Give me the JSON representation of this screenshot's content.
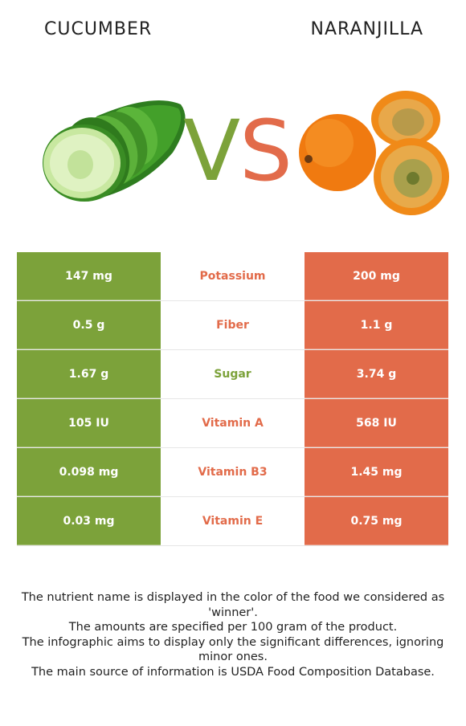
{
  "header": {
    "left_title": "CUCUMBER",
    "right_title": "NARANJILLA",
    "vs_v": "V",
    "vs_s": "S"
  },
  "colors": {
    "cucumber": "#7ca23a",
    "naranjilla": "#e26b4a"
  },
  "rows": [
    {
      "left": "147 mg",
      "nutrient": "Potassium",
      "right": "200 mg",
      "winner": "naranjilla"
    },
    {
      "left": "0.5 g",
      "nutrient": "Fiber",
      "right": "1.1 g",
      "winner": "naranjilla"
    },
    {
      "left": "1.67 g",
      "nutrient": "Sugar",
      "right": "3.74 g",
      "winner": "cucumber"
    },
    {
      "left": "105 IU",
      "nutrient": "Vitamin A",
      "right": "568 IU",
      "winner": "naranjilla"
    },
    {
      "left": "0.098 mg",
      "nutrient": "Vitamin B3",
      "right": "1.45 mg",
      "winner": "naranjilla"
    },
    {
      "left": "0.03 mg",
      "nutrient": "Vitamin E",
      "right": "0.75 mg",
      "winner": "naranjilla"
    }
  ],
  "footer": [
    "The nutrient name is displayed in the color of the food we considered as 'winner'.",
    "The amounts are specified per 100 gram of the product.",
    "The infographic aims to display only the significant differences, ignoring minor ones.",
    "The main source of information is USDA Food Composition Database."
  ]
}
